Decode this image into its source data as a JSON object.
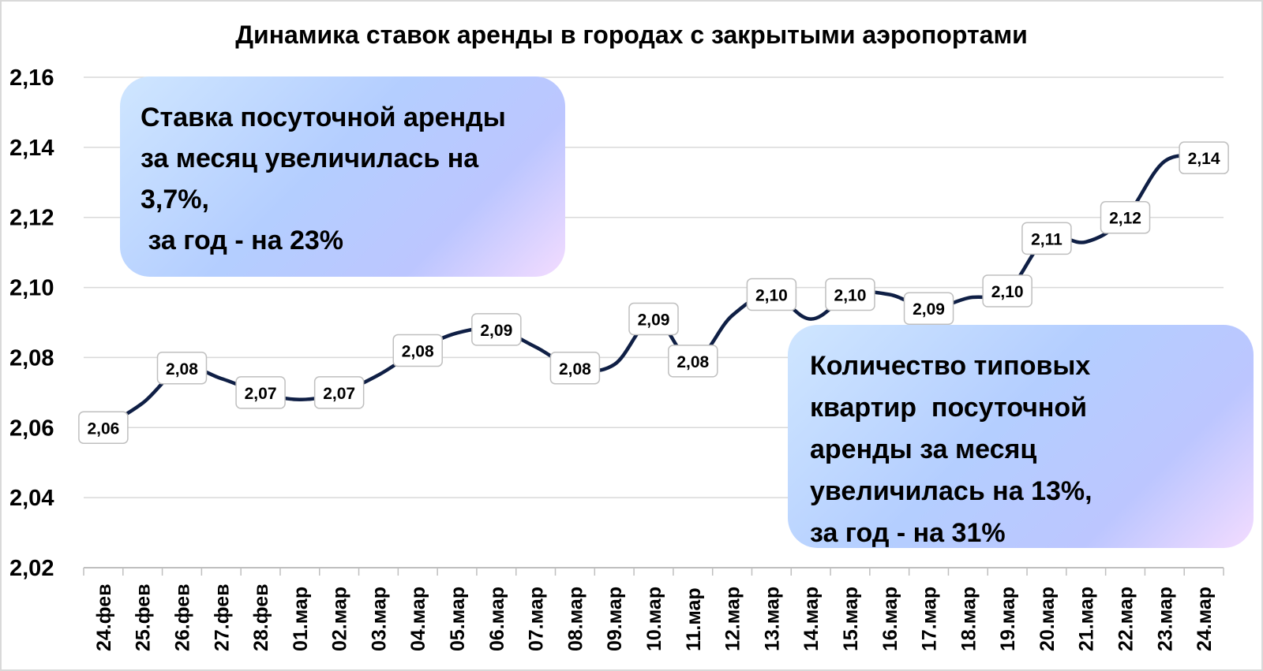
{
  "chart_data": {
    "type": "line",
    "title": "Динамика ставок аренды в городах с закрытыми аэропортами",
    "categories": [
      "24.фев",
      "25.фев",
      "26.фев",
      "27.фев",
      "28.фев",
      "01.мар",
      "02.мар",
      "03.мар",
      "04.мар",
      "05.мар",
      "06.мар",
      "07.мар",
      "08.мар",
      "09.мар",
      "10.мар",
      "11.мар",
      "12.мар",
      "13.мар",
      "14.мар",
      "15.мар",
      "16.мар",
      "17.мар",
      "18.мар",
      "19.мар",
      "20.мар",
      "21.мар",
      "22.мар",
      "23.мар",
      "24.мар"
    ],
    "series": [
      {
        "values": [
          2.06,
          2.067,
          2.077,
          2.074,
          2.07,
          2.068,
          2.07,
          2.075,
          2.082,
          2.087,
          2.088,
          2.083,
          2.077,
          2.078,
          2.091,
          2.079,
          2.092,
          2.098,
          2.091,
          2.098,
          2.098,
          2.094,
          2.097,
          2.099,
          2.114,
          2.113,
          2.12,
          2.136,
          2.137
        ],
        "data_labels": [
          "2,06",
          "",
          "2,08",
          "",
          "2,07",
          "",
          "2,07",
          "",
          "2,08",
          "",
          "2,09",
          "",
          "2,08",
          "",
          "2,09",
          "2,08",
          "",
          "2,10",
          "",
          "2,10",
          "",
          "2,09",
          "",
          "2,10",
          "2,11",
          "",
          "2,12",
          "",
          "2,14"
        ],
        "color": "#0f1f45"
      }
    ],
    "ylim": [
      2.02,
      2.16
    ],
    "yticks": [
      "2,02",
      "2,04",
      "2,06",
      "2,08",
      "2,10",
      "2,12",
      "2,14",
      "2,16"
    ],
    "grid": true,
    "legend": "none"
  },
  "callouts": {
    "left": {
      "lines": [
        "Ставка посуточной аренды",
        "за месяц увеличилась на",
        "3,7%,",
        " за год - на 23%"
      ]
    },
    "right": {
      "lines": [
        "Количество типовых",
        "квартир  посуточной",
        "аренды за месяц",
        "увеличилась на 13%,",
        "за год - на 31%"
      ]
    }
  }
}
